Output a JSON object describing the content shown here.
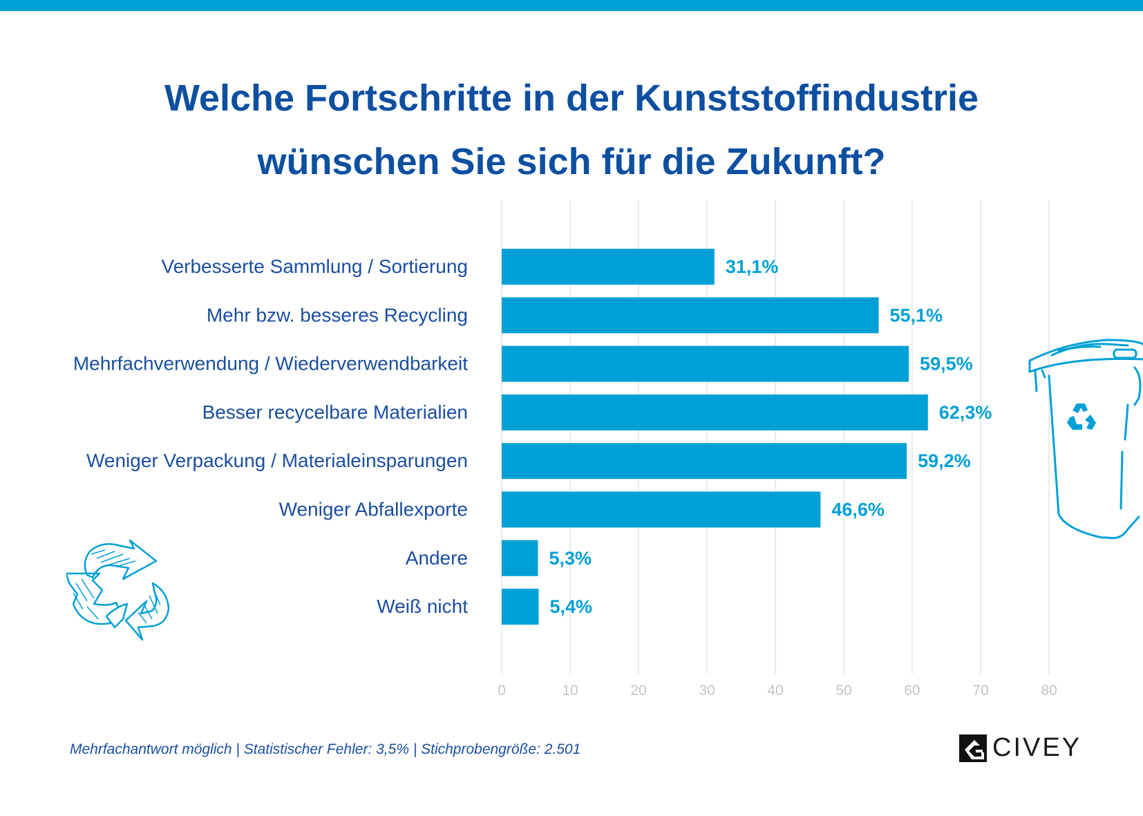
{
  "colors": {
    "accent": "#00a0d6",
    "title": "#0d4fa0",
    "label": "#1b4ea0",
    "grid": "#e4e4e4",
    "tick": "#c4c4c4"
  },
  "title_lines": [
    "Welche Fortschritte in der Kunststoffindustrie",
    "wünschen Sie sich für die Zukunft?"
  ],
  "chart_data": {
    "type": "bar",
    "orientation": "horizontal",
    "categories": [
      "Verbesserte Sammlung / Sortierung",
      "Mehr bzw. besseres Recycling",
      "Mehrfachverwendung / Wiederverwendbarkeit",
      "Besser recycelbare Materialien",
      "Weniger Verpackung / Materialeinsparungen",
      "Weniger Abfallexporte",
      "Andere",
      "Weiß nicht"
    ],
    "values": [
      31.1,
      55.1,
      59.5,
      62.3,
      59.2,
      46.6,
      5.3,
      5.4
    ],
    "value_labels": [
      "31,1%",
      "55,1%",
      "59,5%",
      "62,3%",
      "59,2%",
      "46,6%",
      "5,3%",
      "5,4%"
    ],
    "xlim": [
      0,
      80
    ],
    "xticks": [
      "0",
      "10",
      "20",
      "30",
      "40",
      "50",
      "60",
      "70",
      "80"
    ],
    "grid": true
  },
  "footnote": "Mehrfachantwort möglich  |  Statistischer Fehler: 3,5%  |  Stichprobengröße: 2.501",
  "logo": {
    "text": "CIVEY"
  },
  "icons": [
    "recycle-arrows-icon",
    "recycling-bin-icon",
    "civey-logo-icon"
  ]
}
